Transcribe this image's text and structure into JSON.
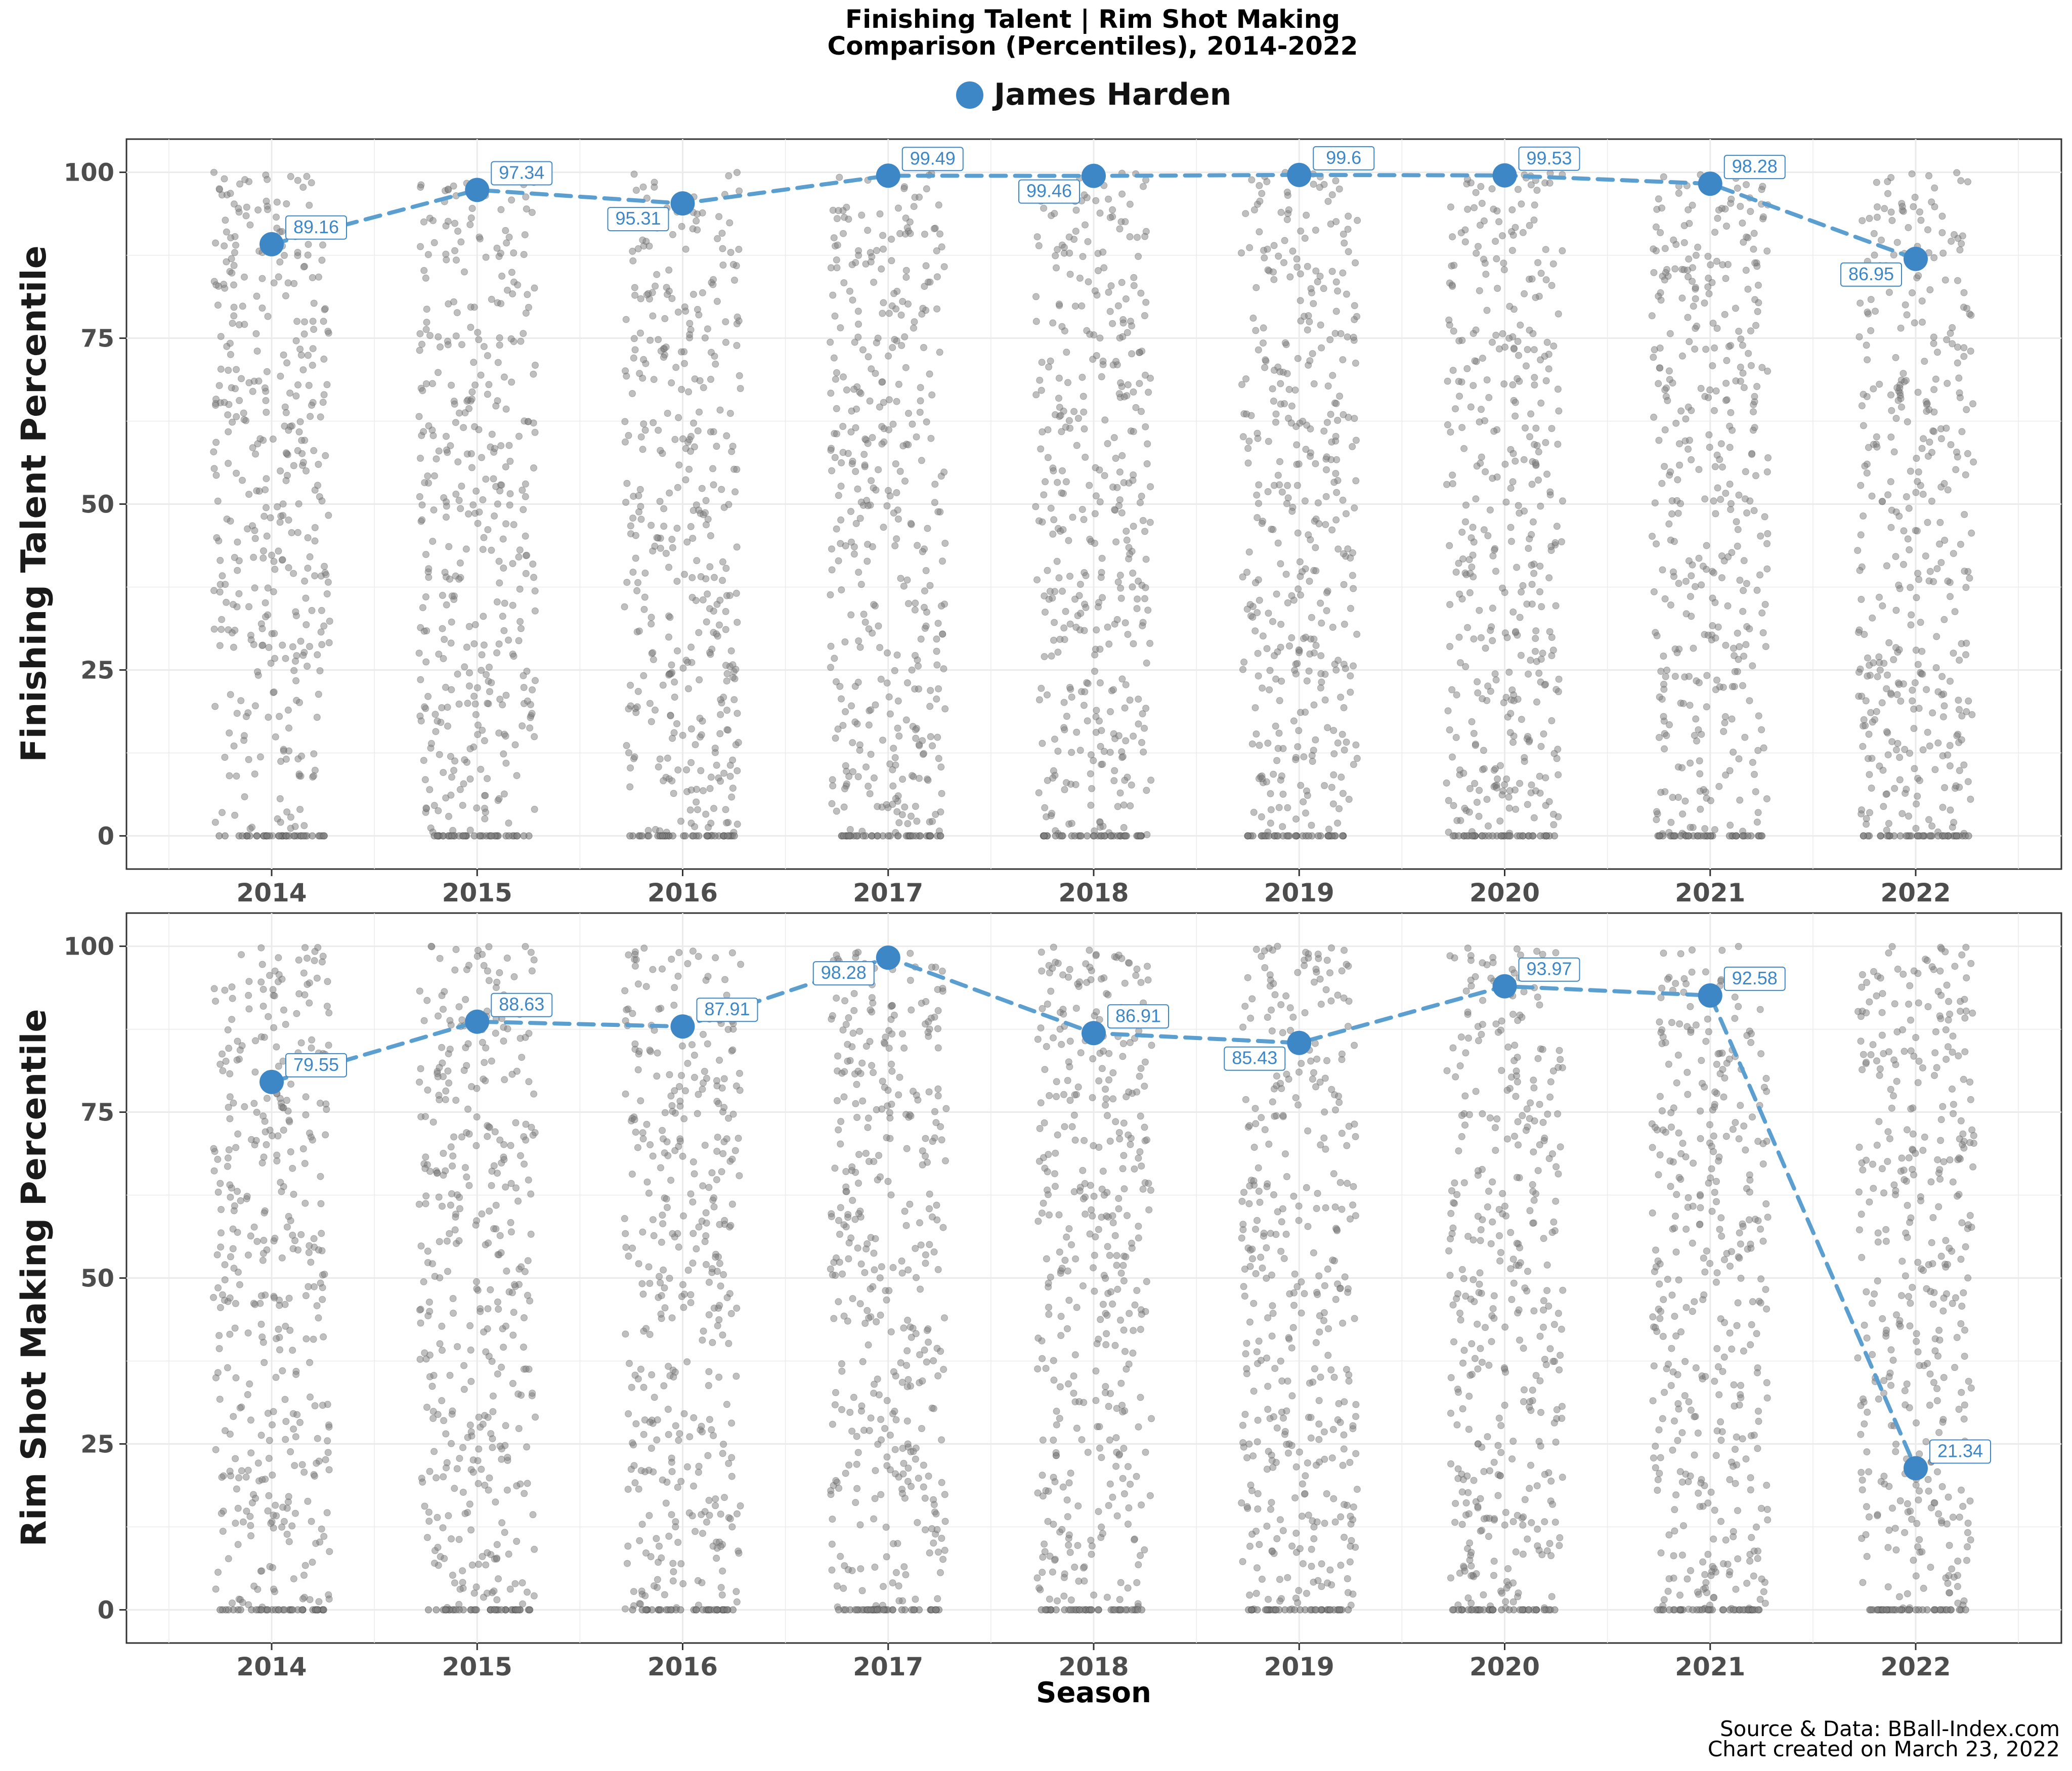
{
  "colors": {
    "accent": "#3d87c7",
    "line": "#5b9fd1",
    "dots": "#7f7f7f",
    "grid": "#ebebeb"
  },
  "title": {
    "line1": "Finishing Talent | Rim Shot Making",
    "line2": "Comparison (Percentiles), 2014-2022"
  },
  "legend": {
    "player": "James Harden"
  },
  "xlabel": "Season",
  "caption": {
    "line1": "Source & Data: BBall-Index.com",
    "line2": "Chart created on March 23, 2022"
  },
  "chart_data": [
    {
      "type": "scatter",
      "panel": "top",
      "ylabel": "Finishing Talent Percentile",
      "categories": [
        "2014",
        "2015",
        "2016",
        "2017",
        "2018",
        "2019",
        "2020",
        "2021",
        "2022"
      ],
      "yticks": [
        "0",
        "25",
        "50",
        "75",
        "100"
      ],
      "ylim": [
        -5,
        105
      ],
      "series": [
        {
          "name": "James Harden",
          "values": [
            89.16,
            97.34,
            95.31,
            99.49,
            99.46,
            99.6,
            99.53,
            98.28,
            86.95
          ],
          "labels": [
            "89.16",
            "97.34",
            "95.31",
            "99.49",
            "99.46",
            "99.6",
            "99.53",
            "98.28",
            "86.95"
          ]
        }
      ]
    },
    {
      "type": "scatter",
      "panel": "bottom",
      "ylabel": "Rim Shot Making Percentile",
      "categories": [
        "2014",
        "2015",
        "2016",
        "2017",
        "2018",
        "2019",
        "2020",
        "2021",
        "2022"
      ],
      "yticks": [
        "0",
        "25",
        "50",
        "75",
        "100"
      ],
      "ylim": [
        -5,
        105
      ],
      "series": [
        {
          "name": "James Harden",
          "values": [
            79.55,
            88.63,
            87.91,
            98.28,
            86.91,
            85.43,
            93.97,
            92.58,
            21.34
          ],
          "labels": [
            "79.55",
            "88.63",
            "87.91",
            "98.28",
            "86.91",
            "85.43",
            "93.97",
            "92.58",
            "21.34"
          ]
        }
      ]
    }
  ]
}
